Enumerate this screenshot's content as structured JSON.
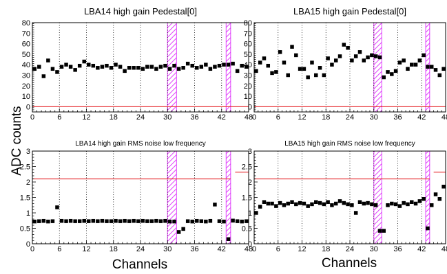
{
  "figure": {
    "ylabel": "ADC counts",
    "xlabel_left": "Channels",
    "xlabel_right": "Channels"
  },
  "colors": {
    "markers": "#000000",
    "threshold": "#e8383d",
    "hatch": "#e040fb",
    "gridlines": "#000000"
  },
  "chart_data": [
    {
      "type": "scatter",
      "title": "LBA14 high gain Pedestal[0]",
      "xlim": [
        0,
        48
      ],
      "ylim": [
        -5,
        80
      ],
      "xticks": [
        0,
        6,
        12,
        18,
        24,
        30,
        36,
        42,
        48
      ],
      "yticks": [
        0,
        10,
        20,
        30,
        40,
        50,
        60,
        70,
        80
      ],
      "grid": "vertical dotted",
      "x": [
        0,
        1,
        2,
        3,
        4,
        5,
        6,
        7,
        8,
        9,
        10,
        11,
        12,
        13,
        14,
        15,
        16,
        17,
        18,
        19,
        20,
        21,
        22,
        23,
        24,
        25,
        26,
        27,
        28,
        29,
        30,
        31,
        32,
        33,
        34,
        35,
        36,
        37,
        38,
        39,
        40,
        41,
        42,
        43,
        44,
        45,
        46,
        47
      ],
      "values": [
        36,
        38,
        29,
        44,
        36,
        33,
        38,
        40,
        38,
        35,
        39,
        43,
        40,
        39,
        37,
        38,
        39,
        37,
        40,
        38,
        34,
        37,
        37,
        37,
        36,
        38,
        38,
        36,
        38,
        39,
        36,
        39,
        36,
        37,
        41,
        39,
        37,
        38,
        40,
        36,
        38,
        39,
        40,
        40,
        41,
        34,
        39,
        38
      ],
      "threshold_lines": [
        {
          "y": 0,
          "x": [
            0,
            48
          ]
        }
      ],
      "hatched_regions": [
        [
          30,
          32
        ],
        [
          43,
          44
        ]
      ]
    },
    {
      "type": "scatter",
      "title": "LBA15 high gain Pedestal[0]",
      "xlim": [
        0,
        48
      ],
      "ylim": [
        -5,
        80
      ],
      "xticks": [
        0,
        6,
        12,
        18,
        24,
        30,
        36,
        42,
        48
      ],
      "yticks": [
        0,
        10,
        20,
        30,
        40,
        50,
        60,
        70,
        80
      ],
      "grid": "vertical dotted",
      "x": [
        0,
        1,
        2,
        3,
        4,
        5,
        6,
        7,
        8,
        9,
        10,
        11,
        12,
        13,
        14,
        15,
        16,
        17,
        18,
        19,
        20,
        21,
        22,
        23,
        24,
        25,
        26,
        27,
        28,
        29,
        30,
        31,
        32,
        33,
        34,
        35,
        36,
        37,
        38,
        39,
        40,
        41,
        42,
        43,
        44,
        45,
        46,
        47
      ],
      "values": [
        34,
        42,
        46,
        39,
        32,
        33,
        52,
        42,
        30,
        57,
        49,
        36,
        36,
        28,
        42,
        30,
        37,
        30,
        46,
        40,
        44,
        48,
        59,
        56,
        44,
        48,
        52,
        44,
        47,
        49,
        48,
        47,
        28,
        33,
        31,
        34,
        42,
        44,
        36,
        40,
        40,
        44,
        49,
        38,
        38,
        35,
        30,
        36
      ],
      "threshold_lines": [
        {
          "y": 0,
          "x": [
            0,
            48
          ]
        }
      ],
      "hatched_regions": [
        [
          30,
          32
        ],
        [
          43,
          44
        ]
      ]
    },
    {
      "type": "scatter",
      "title": "LBA14 high gain RMS noise low frequency",
      "xlim": [
        0,
        48
      ],
      "ylim": [
        0,
        3
      ],
      "xticks": [
        0,
        6,
        12,
        18,
        24,
        30,
        36,
        42,
        48
      ],
      "yticks": [
        0,
        0.5,
        1,
        1.5,
        2,
        2.5,
        3
      ],
      "grid": "vertical dotted",
      "x": [
        0,
        1,
        2,
        3,
        4,
        5,
        6,
        7,
        8,
        9,
        10,
        11,
        12,
        13,
        14,
        15,
        16,
        17,
        18,
        19,
        20,
        21,
        22,
        23,
        24,
        25,
        26,
        27,
        28,
        29,
        30,
        31,
        32,
        33,
        34,
        35,
        36,
        37,
        38,
        39,
        40,
        41,
        42,
        43,
        44,
        45,
        46,
        47
      ],
      "values": [
        0.72,
        0.73,
        0.74,
        0.72,
        0.73,
        1.18,
        0.74,
        0.73,
        0.74,
        0.73,
        0.73,
        0.74,
        0.73,
        0.74,
        0.73,
        0.74,
        0.73,
        0.73,
        0.74,
        0.73,
        0.74,
        0.73,
        0.74,
        0.73,
        0.74,
        0.73,
        0.73,
        0.74,
        0.73,
        0.74,
        0.72,
        0.72,
        0.38,
        0.48,
        0.73,
        0.72,
        0.74,
        0.73,
        0.72,
        0.74,
        1.27,
        0.73,
        0.72,
        0.15,
        0.75,
        0.73,
        0.72,
        0.73
      ],
      "threshold_lines": [
        {
          "y": 2.1,
          "x": [
            0,
            44
          ]
        },
        {
          "y": 2.32,
          "x": [
            45,
            48
          ]
        }
      ],
      "hatched_regions": [
        [
          30,
          32
        ],
        [
          43,
          44
        ]
      ]
    },
    {
      "type": "scatter",
      "title": "LBA15 high gain RMS noise low frequency",
      "xlim": [
        0,
        48
      ],
      "ylim": [
        0,
        3
      ],
      "xticks": [
        0,
        6,
        12,
        18,
        24,
        30,
        36,
        42,
        48
      ],
      "yticks": [
        0,
        0.5,
        1,
        1.5,
        2,
        2.5,
        3
      ],
      "grid": "vertical dotted",
      "x": [
        0,
        1,
        2,
        3,
        4,
        5,
        6,
        7,
        8,
        9,
        10,
        11,
        12,
        13,
        14,
        15,
        16,
        17,
        18,
        19,
        20,
        21,
        22,
        23,
        24,
        25,
        26,
        27,
        28,
        29,
        30,
        31,
        32,
        33,
        34,
        35,
        36,
        37,
        38,
        39,
        40,
        41,
        42,
        43,
        44,
        45,
        46,
        47
      ],
      "values": [
        1.0,
        1.2,
        1.35,
        1.3,
        1.3,
        1.22,
        1.32,
        1.25,
        1.3,
        1.35,
        1.28,
        1.32,
        1.3,
        1.22,
        1.28,
        1.35,
        1.32,
        1.28,
        1.35,
        1.25,
        1.3,
        1.38,
        1.32,
        1.28,
        1.25,
        1.0,
        1.35,
        1.3,
        1.32,
        1.28,
        1.25,
        0.42,
        0.42,
        1.25,
        1.3,
        1.28,
        1.22,
        1.32,
        1.28,
        1.35,
        1.3,
        1.38,
        1.45,
        0.5,
        1.25,
        1.6,
        1.45,
        1.85
      ],
      "threshold_lines": [
        {
          "y": 2.1,
          "x": [
            0,
            44
          ]
        },
        {
          "y": 2.32,
          "x": [
            45,
            48
          ]
        }
      ],
      "hatched_regions": [
        [
          30,
          32
        ],
        [
          43,
          44
        ]
      ]
    }
  ]
}
